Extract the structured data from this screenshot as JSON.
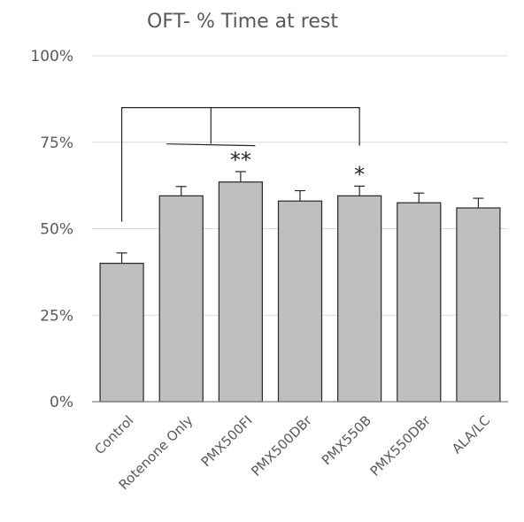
{
  "chart_data": {
    "type": "bar",
    "title": "OFT- % Time at rest",
    "xlabel": "",
    "ylabel": "",
    "ylim": [
      0,
      100
    ],
    "yticks": [
      0,
      25,
      50,
      75,
      100
    ],
    "ytick_labels": [
      "0%",
      "25%",
      "50%",
      "75%",
      "100%"
    ],
    "grid": true,
    "categories": [
      "Control",
      "Rotenone Only",
      "PMX500FI",
      "PMX500DBr",
      "PMX550B",
      "PMX550DBr",
      "ALA/LC"
    ],
    "values": [
      40,
      59.5,
      63.5,
      58,
      59.5,
      57.5,
      56
    ],
    "errors": [
      3,
      2.7,
      3,
      3,
      2.8,
      2.8,
      2.8
    ],
    "colors": {
      "bar": "#bfbfbf",
      "edge": "#262626",
      "grid": "#d9d9d9",
      "text": "#595959"
    },
    "annotations": [
      {
        "text": "**",
        "category": "PMX500FI"
      },
      {
        "text": "*",
        "category": "PMX550B"
      }
    ],
    "significance_bracket": {
      "from": "Control",
      "to": [
        "Rotenone Only",
        "PMX500FI",
        "PMX550B"
      ]
    }
  }
}
